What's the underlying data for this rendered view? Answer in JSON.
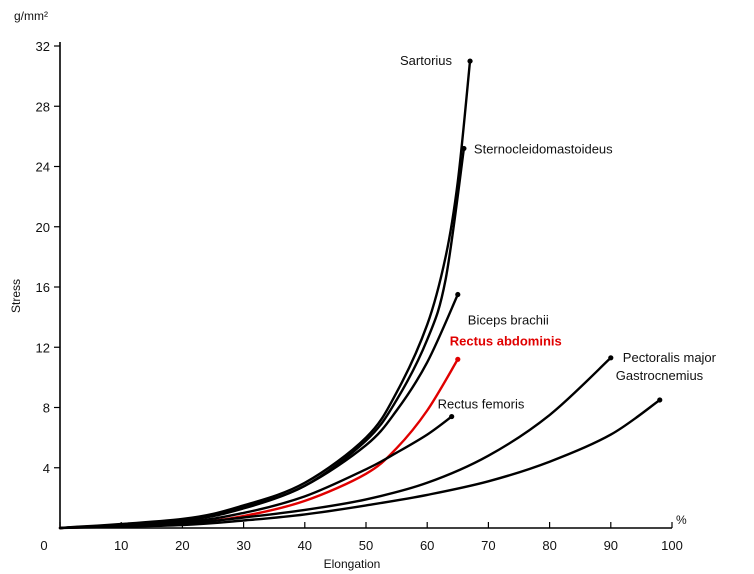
{
  "chart_data": {
    "type": "line",
    "title": "",
    "xlabel": "Elongation",
    "ylabel": "Stress",
    "x_unit": "%",
    "y_unit": "g/mm²",
    "xlim": [
      0,
      100
    ],
    "ylim": [
      0,
      32
    ],
    "xticks": [
      0,
      10,
      20,
      30,
      40,
      50,
      60,
      70,
      80,
      90,
      100
    ],
    "yticks": [
      4,
      8,
      12,
      16,
      20,
      24,
      28,
      32
    ],
    "grid": false,
    "series": [
      {
        "name": "Sartorius",
        "color": "#000000",
        "x": [
          0,
          20,
          30,
          40,
          50,
          55,
          60,
          63,
          65,
          67
        ],
        "y": [
          0,
          0.6,
          1.5,
          3.0,
          6.0,
          9.0,
          13.5,
          18.0,
          23.0,
          31.0
        ]
      },
      {
        "name": "Sternocleidomastoideus",
        "color": "#000000",
        "x": [
          0,
          20,
          30,
          40,
          50,
          55,
          60,
          63,
          66
        ],
        "y": [
          0,
          0.5,
          1.4,
          2.8,
          5.8,
          8.5,
          12.5,
          16.5,
          25.2
        ]
      },
      {
        "name": "Biceps brachii",
        "color": "#000000",
        "x": [
          0,
          20,
          30,
          40,
          50,
          55,
          60,
          65
        ],
        "y": [
          0,
          0.5,
          1.3,
          2.8,
          5.5,
          7.8,
          11.0,
          15.5
        ]
      },
      {
        "name": "Rectus abdominis",
        "color": "#e00000",
        "x": [
          0,
          20,
          30,
          40,
          50,
          55,
          60,
          65
        ],
        "y": [
          0,
          0.3,
          0.8,
          1.8,
          3.6,
          5.3,
          7.8,
          11.2
        ]
      },
      {
        "name": "Rectus femoris",
        "color": "#000000",
        "x": [
          0,
          20,
          30,
          40,
          50,
          55,
          60,
          64
        ],
        "y": [
          0,
          0.4,
          1.0,
          2.1,
          3.9,
          5.0,
          6.2,
          7.4
        ]
      },
      {
        "name": "Pectoralis major",
        "color": "#000000",
        "x": [
          0,
          20,
          30,
          40,
          50,
          60,
          70,
          80,
          90
        ],
        "y": [
          0,
          0.3,
          0.7,
          1.2,
          1.9,
          3.0,
          4.8,
          7.5,
          11.3
        ]
      },
      {
        "name": "Gastrocnemius",
        "color": "#000000",
        "x": [
          0,
          20,
          30,
          40,
          50,
          60,
          70,
          80,
          90,
          98
        ],
        "y": [
          0,
          0.2,
          0.5,
          0.9,
          1.5,
          2.2,
          3.1,
          4.4,
          6.2,
          8.5
        ]
      }
    ]
  }
}
